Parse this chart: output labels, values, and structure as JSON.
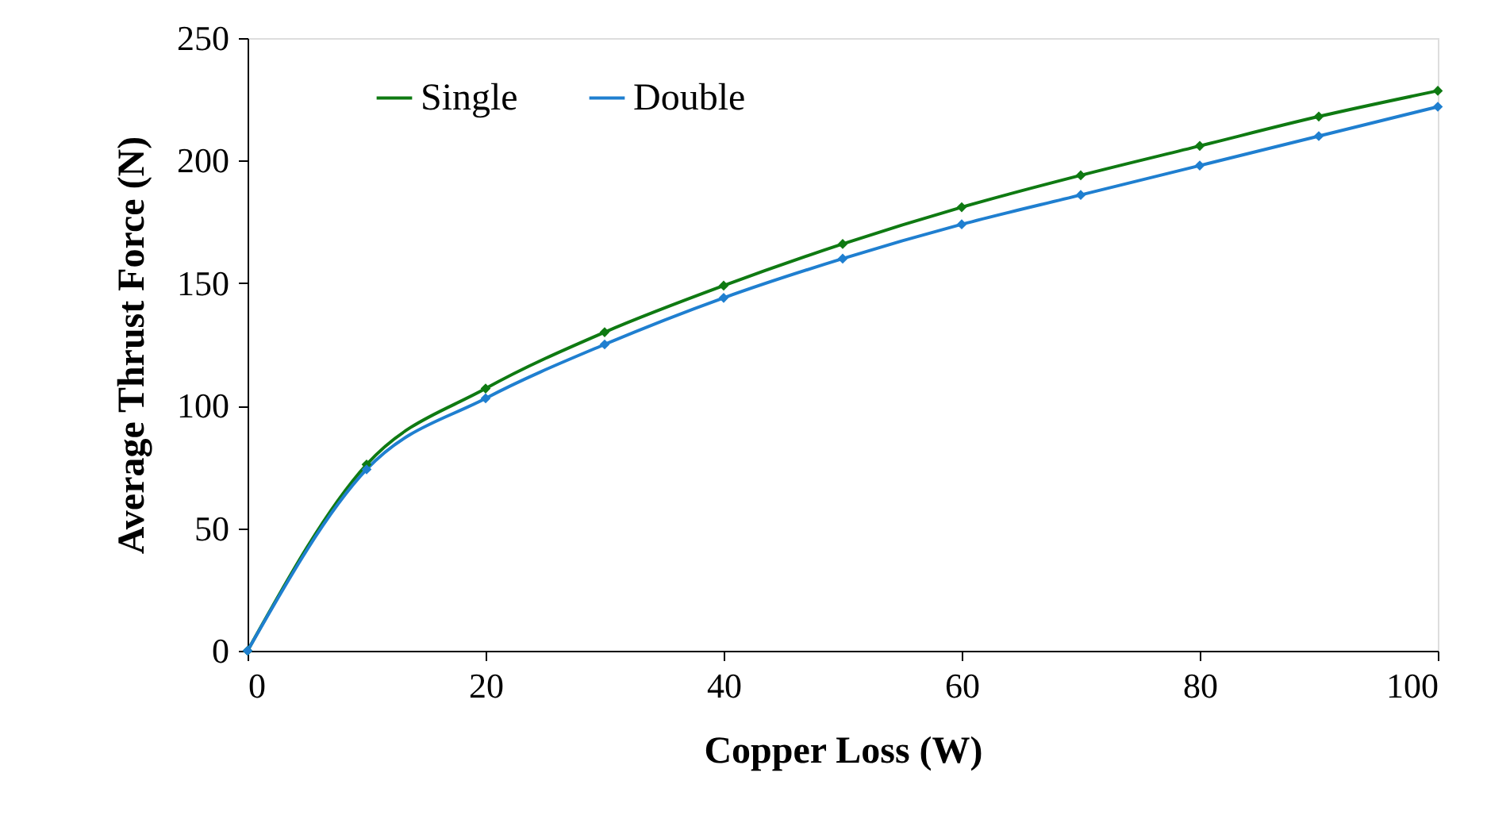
{
  "chart_data": {
    "type": "line",
    "xlabel": "Copper Loss (W)",
    "ylabel": "Average Thrust Force (N)",
    "x": [
      0,
      10,
      20,
      30,
      40,
      50,
      60,
      70,
      80,
      90,
      100
    ],
    "series": [
      {
        "name": "Single",
        "color": "#0f7a12",
        "values": [
          0,
          76,
          107,
          130,
          149,
          166,
          181,
          194,
          206,
          218,
          228.5
        ]
      },
      {
        "name": "Double",
        "color": "#1f7fd0",
        "values": [
          0,
          74,
          103,
          125,
          144,
          160,
          174,
          186,
          198,
          210,
          222
        ]
      }
    ],
    "xlim": [
      0,
      100
    ],
    "xticks": [
      0,
      20,
      40,
      60,
      80,
      100
    ],
    "ylim": [
      0,
      250
    ],
    "yticks": [
      0,
      50,
      100,
      150,
      200,
      250
    ],
    "grid": false,
    "legend": "top left",
    "marker": "diamond",
    "line_style": "solid"
  }
}
